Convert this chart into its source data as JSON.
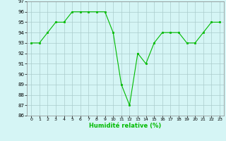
{
  "x": [
    0,
    1,
    2,
    3,
    4,
    5,
    6,
    7,
    8,
    9,
    10,
    11,
    12,
    13,
    14,
    15,
    16,
    17,
    18,
    19,
    20,
    21,
    22,
    23
  ],
  "y": [
    93,
    93,
    94,
    95,
    95,
    96,
    96,
    96,
    96,
    96,
    94,
    89,
    87,
    92,
    91,
    93,
    94,
    94,
    94,
    93,
    93,
    94,
    95,
    95
  ],
  "xlabel": "Humidité relative (%)",
  "ylim": [
    86,
    97
  ],
  "xlim_min": -0.5,
  "xlim_max": 23.5,
  "yticks": [
    86,
    87,
    88,
    89,
    90,
    91,
    92,
    93,
    94,
    95,
    96,
    97
  ],
  "xticks": [
    0,
    1,
    2,
    3,
    4,
    5,
    6,
    7,
    8,
    9,
    10,
    11,
    12,
    13,
    14,
    15,
    16,
    17,
    18,
    19,
    20,
    21,
    22,
    23
  ],
  "line_color": "#00bb00",
  "marker_color": "#00bb00",
  "bg_color": "#d5f5f5",
  "grid_color": "#aacccc",
  "fig_bg": "#d5f5f5"
}
